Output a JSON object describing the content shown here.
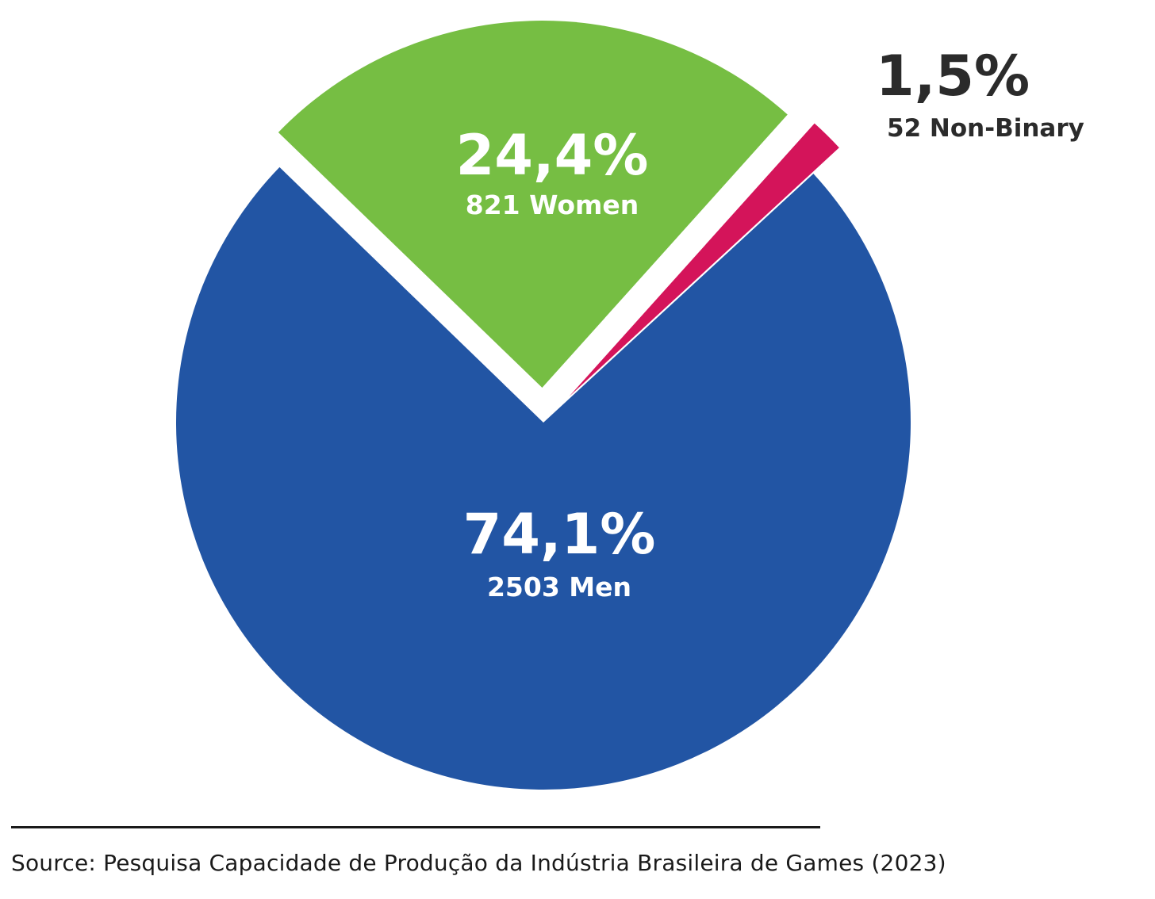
{
  "chart_data": {
    "type": "pie",
    "slices": [
      {
        "category": "Men",
        "percent": 74.1,
        "percent_label": "74,1%",
        "count": 2503,
        "count_label": "2503 Men",
        "color": "#2255A4",
        "exploded": false
      },
      {
        "category": "Women",
        "percent": 24.4,
        "percent_label": "24,4%",
        "count": 821,
        "count_label": "821 Women",
        "color": "#76BE43",
        "exploded": true
      },
      {
        "category": "Non-Binary",
        "percent": 1.5,
        "percent_label": "1,5%",
        "count": 52,
        "count_label": "52 Non-Binary",
        "color": "#D4145A",
        "exploded": true
      }
    ],
    "label_colors": {
      "inside": "#ffffff",
      "outside": "#2b2b2b"
    }
  },
  "source": "Source: Pesquisa Capacidade de Produção da Indústria Brasileira de Games (2023)"
}
